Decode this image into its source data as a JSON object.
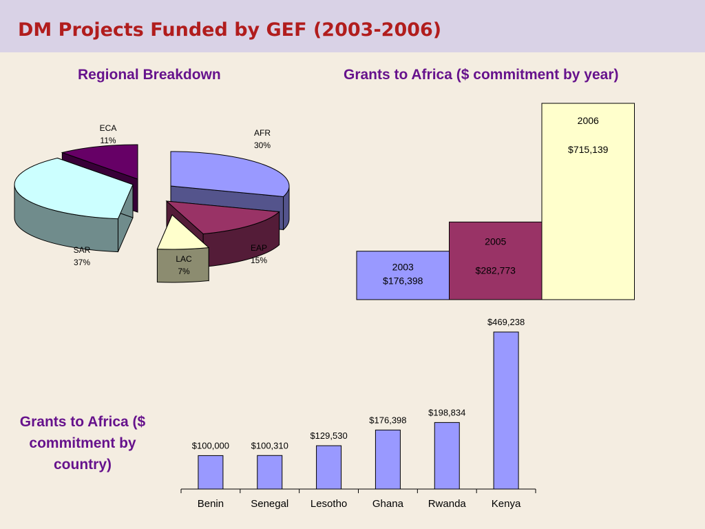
{
  "slide": {
    "title": "DM Projects Funded by GEF (2003-2006)",
    "pie_heading": "Regional Breakdown",
    "year_heading": "Grants to Africa ($ commitment by year)",
    "country_heading": "Grants to  Africa ($ commitment by country)"
  },
  "colors": {
    "background": "#f4ede1",
    "title_bar": "#d9d2e6",
    "title_text": "#b11d1d",
    "heading_text": "#66128c",
    "bar_fill": "#9999ff"
  },
  "chart_data": [
    {
      "type": "pie",
      "title": "Regional Breakdown",
      "three_d": true,
      "exploded": true,
      "slices": [
        {
          "label": "AFR",
          "value": 30,
          "value_label": "30%",
          "color": "#9999ff"
        },
        {
          "label": "EAP",
          "value": 15,
          "value_label": "15%",
          "color": "#993366"
        },
        {
          "label": "LAC",
          "value": 7,
          "value_label": "7%",
          "color": "#ffffcc"
        },
        {
          "label": "SAR",
          "value": 37,
          "value_label": "37%",
          "color": "#ccffff"
        },
        {
          "label": "ECA",
          "value": 11,
          "value_label": "11%",
          "color": "#660066"
        }
      ]
    },
    {
      "type": "bar",
      "title": "Grants to Africa ($ commitment by year)",
      "categories": [
        "2003",
        "2005",
        "2006"
      ],
      "values": [
        176398,
        282773,
        715139
      ],
      "value_labels": [
        "$176,398",
        "$282,773",
        "$715,139"
      ],
      "colors": [
        "#9999ff",
        "#993366",
        "#ffffcc"
      ],
      "bar_gap": 0,
      "ylim": [
        0,
        715139
      ]
    },
    {
      "type": "bar",
      "title": "Grants to  Africa ($ commitment by country)",
      "categories": [
        "Benin",
        "Senegal",
        "Lesotho",
        "Ghana",
        "Rwanda",
        "Kenya"
      ],
      "values": [
        100000,
        100310,
        129530,
        176398,
        198834,
        469238
      ],
      "value_labels": [
        "$100,000",
        "$100,310",
        "$129,530",
        "$176,398",
        "$198,834",
        "$469,238"
      ],
      "xlabel": "",
      "ylabel": "",
      "ylim": [
        0,
        469238
      ]
    }
  ]
}
